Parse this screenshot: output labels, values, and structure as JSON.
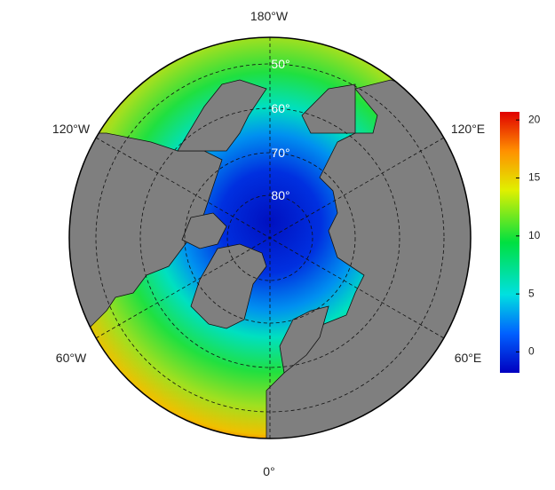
{
  "map": {
    "longitude_labels": [
      "180°W",
      "120°W",
      "120°E",
      "60°W",
      "60°E",
      "0°"
    ],
    "latitude_labels": [
      "50°",
      "60°",
      "70°",
      "80°"
    ],
    "colorbar": {
      "lim": [
        -1.8,
        20.7
      ],
      "ticks": [
        0,
        5,
        10,
        15,
        20
      ]
    }
  }
}
